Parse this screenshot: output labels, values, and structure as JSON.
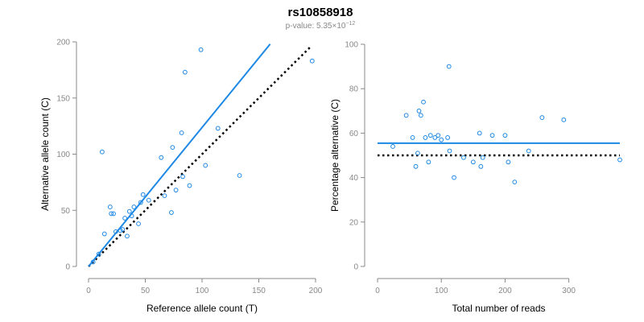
{
  "title": "rs10858918",
  "subtitle_prefix": "p-value: 5.35×10",
  "subtitle_exponent": "−12",
  "colors": {
    "accent": "#1e88e5",
    "axis": "#888888",
    "expected": "#000000"
  },
  "chart_data": [
    {
      "type": "scatter",
      "xlabel": "Reference allele count (T)",
      "ylabel": "Alternative allele count (C)",
      "xlim": [
        0,
        200
      ],
      "ylim": [
        0,
        200
      ],
      "xticks": [
        0,
        50,
        100,
        150,
        200
      ],
      "yticks": [
        0,
        50,
        100,
        150,
        200
      ],
      "grid": false,
      "points": [
        [
          4,
          4
        ],
        [
          9,
          11
        ],
        [
          12,
          102
        ],
        [
          14,
          29
        ],
        [
          19,
          53
        ],
        [
          20,
          47
        ],
        [
          22,
          47
        ],
        [
          24,
          31
        ],
        [
          28,
          32
        ],
        [
          30,
          33
        ],
        [
          32,
          43
        ],
        [
          34,
          27
        ],
        [
          36,
          49
        ],
        [
          38,
          45
        ],
        [
          40,
          53
        ],
        [
          44,
          38
        ],
        [
          46,
          57
        ],
        [
          48,
          64
        ],
        [
          53,
          59
        ],
        [
          64,
          97
        ],
        [
          67,
          63
        ],
        [
          73,
          48
        ],
        [
          74,
          106
        ],
        [
          77,
          68
        ],
        [
          82,
          119
        ],
        [
          83,
          80
        ],
        [
          85,
          173
        ],
        [
          89,
          72
        ],
        [
          99,
          193
        ],
        [
          103,
          90
        ],
        [
          114,
          123
        ],
        [
          133,
          81
        ],
        [
          197,
          183
        ]
      ],
      "fit_line": {
        "x": [
          0,
          160
        ],
        "y": [
          0,
          198
        ]
      },
      "expected_line": {
        "x": [
          0,
          196
        ],
        "y": [
          0,
          196
        ]
      }
    },
    {
      "type": "scatter",
      "xlabel": "Total number of reads",
      "ylabel": "Percentage alternative (C)",
      "xlim": [
        0,
        380
      ],
      "ylim": [
        0,
        100
      ],
      "xticks": [
        0,
        100,
        200,
        300
      ],
      "yticks": [
        0,
        20,
        40,
        60,
        80,
        100
      ],
      "grid": false,
      "points": [
        [
          24,
          54
        ],
        [
          45,
          68
        ],
        [
          55,
          58
        ],
        [
          60,
          45
        ],
        [
          63,
          51
        ],
        [
          65,
          70
        ],
        [
          68,
          68
        ],
        [
          72,
          74
        ],
        [
          75,
          58
        ],
        [
          80,
          47
        ],
        [
          83,
          59
        ],
        [
          90,
          58
        ],
        [
          95,
          59
        ],
        [
          100,
          57
        ],
        [
          110,
          58
        ],
        [
          112,
          90
        ],
        [
          113,
          52
        ],
        [
          120,
          40
        ],
        [
          135,
          49
        ],
        [
          150,
          47
        ],
        [
          160,
          60
        ],
        [
          162,
          45
        ],
        [
          165,
          49
        ],
        [
          180,
          59
        ],
        [
          200,
          59
        ],
        [
          205,
          47
        ],
        [
          215,
          38
        ],
        [
          237,
          52
        ],
        [
          258,
          67
        ],
        [
          292,
          66
        ],
        [
          380,
          48
        ]
      ],
      "fit_line": {
        "x": [
          0,
          380
        ],
        "y": [
          55.5,
          55.5
        ]
      },
      "expected_line": {
        "x": [
          0,
          380
        ],
        "y": [
          50,
          50
        ]
      }
    }
  ]
}
